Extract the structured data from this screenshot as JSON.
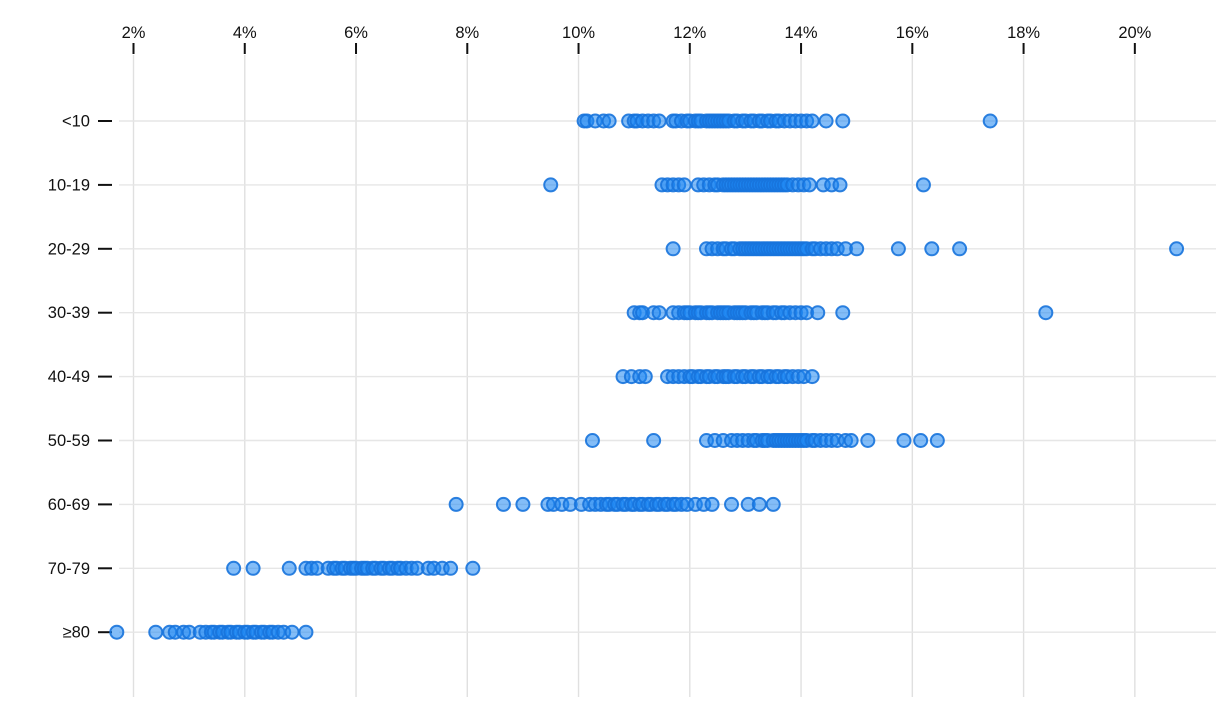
{
  "chart_data": {
    "type": "scatter",
    "subtype": "strip-plot",
    "title": "",
    "xlabel": "",
    "ylabel": "",
    "x_axis": {
      "position": "top",
      "tick_values": [
        2,
        4,
        6,
        8,
        10,
        12,
        14,
        16,
        18,
        20
      ],
      "tick_labels": [
        "2%",
        "4%",
        "6%",
        "8%",
        "10%",
        "12%",
        "14%",
        "16%",
        "18%",
        "20%"
      ],
      "xlim": [
        1.5,
        21.5
      ],
      "unit": "percent"
    },
    "y_axis": {
      "categories": [
        "<10",
        "10-19",
        "20-29",
        "30-39",
        "40-49",
        "50-59",
        "60-69",
        "70-79",
        "≥80"
      ]
    },
    "grid": true,
    "legend": "none",
    "colors": {
      "dot_fill": "rgba(30,134,242,0.55)",
      "dot_stroke": "rgba(23,115,220,0.9)",
      "gridline_vertical": "#e0e0e0",
      "gridline_horizontal": "#e6e6e6",
      "axis_tick": "#111111",
      "label_text": "#111111",
      "background": "#ffffff"
    },
    "rows": [
      {
        "label": "<10",
        "values": [
          10.1,
          10.15,
          10.3,
          10.45,
          10.55,
          10.9,
          11.0,
          11.05,
          11.15,
          11.25,
          11.35,
          11.45,
          11.7,
          11.75,
          11.85,
          11.95,
          12.0,
          12.1,
          12.15,
          12.2,
          12.3,
          12.35,
          12.4,
          12.45,
          12.5,
          12.55,
          12.6,
          12.65,
          12.7,
          12.8,
          12.85,
          12.95,
          13.0,
          13.1,
          13.15,
          13.25,
          13.3,
          13.4,
          13.45,
          13.55,
          13.6,
          13.7,
          13.8,
          13.9,
          14.0,
          14.1,
          14.2,
          14.45,
          14.75,
          17.4
        ]
      },
      {
        "label": "10-19",
        "values": [
          9.5,
          11.5,
          11.6,
          11.7,
          11.8,
          11.9,
          12.15,
          12.25,
          12.35,
          12.45,
          12.5,
          12.6,
          12.65,
          12.7,
          12.75,
          12.8,
          12.85,
          12.9,
          12.95,
          13.0,
          13.05,
          13.1,
          13.15,
          13.2,
          13.25,
          13.3,
          13.35,
          13.4,
          13.45,
          13.5,
          13.55,
          13.6,
          13.65,
          13.7,
          13.75,
          13.85,
          13.95,
          14.05,
          14.15,
          14.4,
          14.55,
          14.7,
          16.2
        ]
      },
      {
        "label": "20-29",
        "values": [
          11.7,
          12.3,
          12.4,
          12.5,
          12.6,
          12.65,
          12.75,
          12.8,
          12.9,
          12.95,
          13.0,
          13.05,
          13.1,
          13.15,
          13.2,
          13.25,
          13.3,
          13.35,
          13.4,
          13.45,
          13.5,
          13.55,
          13.6,
          13.65,
          13.7,
          13.75,
          13.8,
          13.85,
          13.9,
          13.95,
          14.0,
          14.05,
          14.1,
          14.2,
          14.25,
          14.35,
          14.45,
          14.55,
          14.65,
          14.8,
          15.0,
          15.75,
          16.35,
          16.85,
          20.75
        ]
      },
      {
        "label": "30-39",
        "values": [
          11.0,
          11.1,
          11.15,
          11.35,
          11.45,
          11.7,
          11.8,
          11.9,
          11.95,
          12.0,
          12.1,
          12.15,
          12.2,
          12.3,
          12.35,
          12.4,
          12.5,
          12.55,
          12.6,
          12.65,
          12.7,
          12.8,
          12.85,
          12.9,
          12.95,
          13.0,
          13.1,
          13.15,
          13.2,
          13.3,
          13.35,
          13.4,
          13.5,
          13.55,
          13.65,
          13.7,
          13.8,
          13.9,
          14.0,
          14.1,
          14.3,
          14.75,
          18.4
        ]
      },
      {
        "label": "40-49",
        "values": [
          10.8,
          10.95,
          11.1,
          11.2,
          11.6,
          11.7,
          11.8,
          11.9,
          12.0,
          12.05,
          12.15,
          12.2,
          12.3,
          12.35,
          12.45,
          12.5,
          12.6,
          12.65,
          12.7,
          12.8,
          12.85,
          12.95,
          13.0,
          13.1,
          13.15,
          13.25,
          13.3,
          13.4,
          13.45,
          13.55,
          13.6,
          13.7,
          13.75,
          13.85,
          13.95,
          14.05,
          14.2
        ]
      },
      {
        "label": "50-59",
        "values": [
          10.25,
          11.35,
          12.3,
          12.45,
          12.6,
          12.75,
          12.85,
          12.95,
          13.05,
          13.15,
          13.2,
          13.3,
          13.35,
          13.4,
          13.5,
          13.55,
          13.6,
          13.65,
          13.7,
          13.75,
          13.8,
          13.85,
          13.9,
          13.95,
          14.0,
          14.05,
          14.1,
          14.2,
          14.25,
          14.35,
          14.45,
          14.55,
          14.65,
          14.8,
          14.9,
          15.2,
          15.85,
          16.15,
          16.45
        ]
      },
      {
        "label": "60-69",
        "values": [
          7.8,
          8.65,
          9.0,
          9.45,
          9.55,
          9.7,
          9.85,
          10.05,
          10.2,
          10.3,
          10.4,
          10.5,
          10.55,
          10.65,
          10.7,
          10.8,
          10.85,
          10.95,
          11.0,
          11.1,
          11.15,
          11.25,
          11.3,
          11.4,
          11.45,
          11.55,
          11.6,
          11.7,
          11.75,
          11.85,
          11.95,
          12.1,
          12.25,
          12.4,
          12.75,
          13.05,
          13.25,
          13.5
        ]
      },
      {
        "label": "70-79",
        "values": [
          3.8,
          4.15,
          4.8,
          5.1,
          5.2,
          5.3,
          5.5,
          5.6,
          5.65,
          5.75,
          5.8,
          5.9,
          5.95,
          6.0,
          6.1,
          6.15,
          6.2,
          6.3,
          6.35,
          6.45,
          6.5,
          6.6,
          6.65,
          6.75,
          6.8,
          6.9,
          7.0,
          7.1,
          7.3,
          7.4,
          7.55,
          7.7,
          8.1
        ]
      },
      {
        "label": "≥80",
        "values": [
          1.7,
          2.4,
          2.65,
          2.75,
          2.9,
          3.0,
          3.2,
          3.3,
          3.4,
          3.45,
          3.55,
          3.6,
          3.7,
          3.75,
          3.85,
          3.9,
          4.0,
          4.05,
          4.15,
          4.2,
          4.3,
          4.35,
          4.45,
          4.5,
          4.6,
          4.7,
          4.85,
          5.1
        ]
      }
    ]
  }
}
